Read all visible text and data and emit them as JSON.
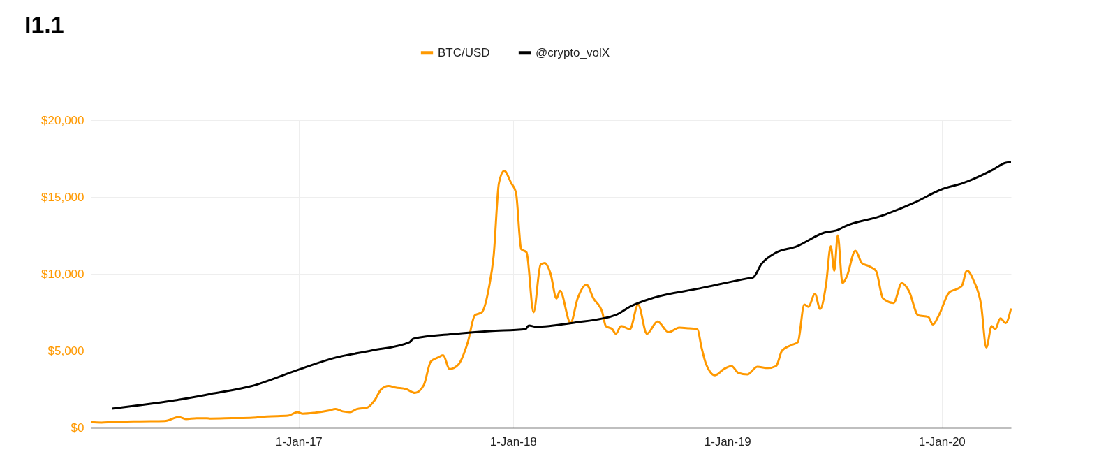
{
  "chart_data": {
    "type": "line",
    "title": "I1.1",
    "legend": "top",
    "grid": true,
    "line_style": "solid",
    "marker": "none",
    "xlim": [
      "2016-01-13",
      "2020-04-28"
    ],
    "xticks": [
      {
        "value": "2017-01-01",
        "label": "1-Jan-17"
      },
      {
        "value": "2018-01-01",
        "label": "1-Jan-18"
      },
      {
        "value": "2019-01-01",
        "label": "1-Jan-19"
      },
      {
        "value": "2020-01-01",
        "label": "1-Jan-20"
      }
    ],
    "ylim": [
      0,
      20000
    ],
    "yticks": [
      {
        "value": 0,
        "label": "$0"
      },
      {
        "value": 5000,
        "label": "$5,000"
      },
      {
        "value": 10000,
        "label": "$10,000"
      },
      {
        "value": 15000,
        "label": "$15,000"
      },
      {
        "value": 20000,
        "label": "$20,000"
      }
    ],
    "series": [
      {
        "name": "BTC/USD",
        "color": "#ff9900",
        "x": [
          "2016-01-13",
          "2016-01-31",
          "2016-02-18",
          "2016-04-06",
          "2016-05-18",
          "2016-06-11",
          "2016-06-23",
          "2016-07-11",
          "2016-07-29",
          "2016-08-04",
          "2016-09-09",
          "2016-10-15",
          "2016-11-08",
          "2016-12-14",
          "2016-12-30",
          "2017-01-08",
          "2017-01-28",
          "2017-02-21",
          "2017-03-05",
          "2017-03-17",
          "2017-03-29",
          "2017-04-10",
          "2017-04-28",
          "2017-05-10",
          "2017-05-22",
          "2017-06-03",
          "2017-06-15",
          "2017-07-03",
          "2017-07-18",
          "2017-08-02",
          "2017-08-14",
          "2017-08-26",
          "2017-09-04",
          "2017-09-15",
          "2017-09-30",
          "2017-10-16",
          "2017-10-28",
          "2017-11-09",
          "2017-11-21",
          "2017-11-29",
          "2017-12-08",
          "2017-12-17",
          "2017-12-29",
          "2018-01-06",
          "2018-01-15",
          "2018-01-24",
          "2018-02-05",
          "2018-02-17",
          "2018-02-24",
          "2018-03-06",
          "2018-03-16",
          "2018-03-22",
          "2018-04-09",
          "2018-04-21",
          "2018-05-06",
          "2018-05-18",
          "2018-06-02",
          "2018-06-08",
          "2018-06-19",
          "2018-06-25",
          "2018-07-04",
          "2018-07-19",
          "2018-08-02",
          "2018-08-17",
          "2018-09-04",
          "2018-09-23",
          "2018-10-11",
          "2018-10-28",
          "2018-11-11",
          "2018-11-18",
          "2018-11-26",
          "2018-12-11",
          "2018-12-26",
          "2019-01-08",
          "2019-01-20",
          "2019-02-04",
          "2019-02-21",
          "2019-03-11",
          "2019-03-25",
          "2019-04-04",
          "2019-04-19",
          "2019-05-01",
          "2019-05-12",
          "2019-05-19",
          "2019-05-30",
          "2019-06-08",
          "2019-06-18",
          "2019-06-26",
          "2019-07-02",
          "2019-07-08",
          "2019-07-16",
          "2019-07-23",
          "2019-08-07",
          "2019-08-18",
          "2019-08-30",
          "2019-09-11",
          "2019-09-23",
          "2019-10-11",
          "2019-10-25",
          "2019-11-06",
          "2019-11-22",
          "2019-12-09",
          "2019-12-17",
          "2019-12-27",
          "2020-01-14",
          "2020-01-26",
          "2020-02-04",
          "2020-02-13",
          "2020-02-25",
          "2020-03-08",
          "2020-03-17",
          "2020-03-26",
          "2020-04-01",
          "2020-04-10",
          "2020-04-19",
          "2020-04-28"
        ],
        "values": [
          360,
          320,
          360,
          400,
          420,
          680,
          550,
          600,
          600,
          580,
          610,
          640,
          720,
          770,
          1000,
          900,
          960,
          1100,
          1200,
          1050,
          1000,
          1200,
          1300,
          1750,
          2500,
          2700,
          2600,
          2500,
          2250,
          2750,
          4300,
          4550,
          4700,
          3800,
          4100,
          5550,
          7300,
          7500,
          9100,
          11150,
          15900,
          16700,
          15900,
          15300,
          11600,
          11400,
          7500,
          10600,
          10700,
          10000,
          8400,
          8900,
          6800,
          8400,
          9300,
          8400,
          7500,
          6600,
          6400,
          6100,
          6600,
          6400,
          8000,
          6100,
          6900,
          6200,
          6500,
          6450,
          6400,
          5200,
          4100,
          3400,
          3800,
          4000,
          3550,
          3450,
          3950,
          3870,
          4000,
          5000,
          5350,
          5550,
          8000,
          7850,
          8700,
          7700,
          9300,
          11800,
          10200,
          12500,
          9400,
          9800,
          11500,
          10700,
          10500,
          10200,
          8400,
          8100,
          9400,
          8900,
          7300,
          7200,
          6700,
          7300,
          8800,
          9000,
          9200,
          10200,
          9500,
          8000,
          5200,
          6600,
          6400,
          7100,
          6800,
          7750
        ]
      },
      {
        "name": "@crypto_volX",
        "color": "#000000",
        "x": [
          "2016-02-18",
          "2016-04-06",
          "2016-06-05",
          "2016-08-04",
          "2016-10-11",
          "2017-01-01",
          "2017-03-05",
          "2017-05-04",
          "2017-07-09",
          "2017-07-15",
          "2017-09-24",
          "2017-11-22",
          "2018-01-22",
          "2018-01-28",
          "2018-02-09",
          "2018-04-15",
          "2018-06-25",
          "2018-07-19",
          "2018-08-29",
          "2018-11-15",
          "2019-02-04",
          "2019-02-14",
          "2019-02-28",
          "2019-03-24",
          "2019-04-28",
          "2019-06-15",
          "2019-07-08",
          "2019-07-20",
          "2019-09-17",
          "2019-11-16",
          "2020-01-01",
          "2020-02-06",
          "2020-03-26",
          "2020-04-19",
          "2020-04-28"
        ],
        "values": [
          1230,
          1450,
          1770,
          2180,
          2680,
          3770,
          4550,
          5000,
          5550,
          5770,
          6090,
          6270,
          6400,
          6640,
          6550,
          6820,
          7320,
          7860,
          8450,
          9050,
          9700,
          9770,
          10640,
          11360,
          11770,
          12680,
          12860,
          13090,
          13730,
          14640,
          15500,
          15900,
          16730,
          17230,
          17270
        ]
      }
    ]
  }
}
